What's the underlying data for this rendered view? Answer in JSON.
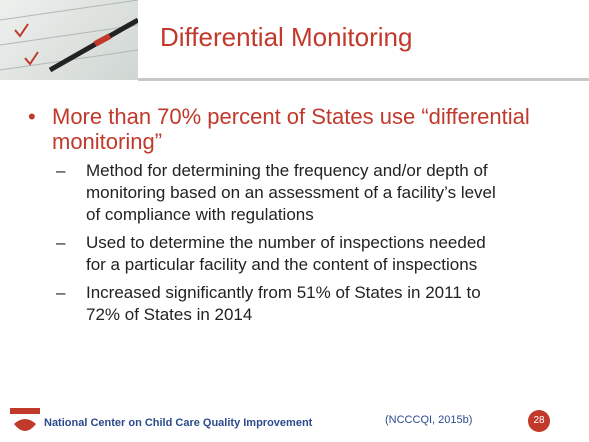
{
  "header": {
    "title": "Differential Monitoring"
  },
  "bullets": [
    {
      "text": "More than 70% percent of States use “differential monitoring”",
      "subs": [
        "Method for determining the frequency and/or depth of monitoring based on an assessment of a facility’s level of compliance with regulations",
        "Used to determine the number of inspections needed for a particular facility and the content of inspections",
        "Increased significantly from 51% of States in 2011 to 72% of States in 2014"
      ]
    }
  ],
  "footer": {
    "org": "National Center on Child Care Quality Improvement",
    "citation": "(NCCCQI, 2015b)",
    "page": "28"
  }
}
